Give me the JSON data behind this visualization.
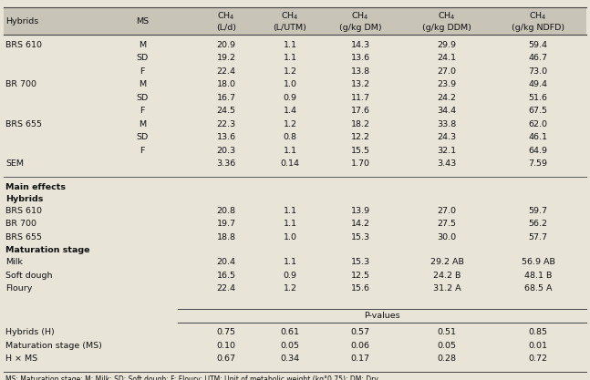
{
  "col_headers": [
    "Hybrids",
    "MS",
    "CH$_4$\n(L/d)",
    "CH$_4$\n(L/UTM)",
    "CH$_4$\n(g/kg DM)",
    "CH$_4$\n(g/kg DDM)",
    "CH$_4$\n(g/kg NDFD)"
  ],
  "rows": [
    [
      "BRS 610",
      "M",
      "20.9",
      "1.1",
      "14.3",
      "29.9",
      "59.4"
    ],
    [
      "",
      "SD",
      "19.2",
      "1.1",
      "13.6",
      "24.1",
      "46.7"
    ],
    [
      "",
      "F",
      "22.4",
      "1.2",
      "13.8",
      "27.0",
      "73.0"
    ],
    [
      "BR 700",
      "M",
      "18.0",
      "1.0",
      "13.2",
      "23.9",
      "49.4"
    ],
    [
      "",
      "SD",
      "16.7",
      "0.9",
      "11.7",
      "24.2",
      "51.6"
    ],
    [
      "",
      "F",
      "24.5",
      "1.4",
      "17.6",
      "34.4",
      "67.5"
    ],
    [
      "BRS 655",
      "M",
      "22.3",
      "1.2",
      "18.2",
      "33.8",
      "62.0"
    ],
    [
      "",
      "SD",
      "13.6",
      "0.8",
      "12.2",
      "24.3",
      "46.1"
    ],
    [
      "",
      "F",
      "20.3",
      "1.1",
      "15.5",
      "32.1",
      "64.9"
    ],
    [
      "SEM",
      "",
      "3.36",
      "0.14",
      "1.70",
      "3.43",
      "7.59"
    ]
  ],
  "main_effects_label": "Main effects",
  "hybrids_label": "Hybrids",
  "hybrid_rows": [
    [
      "BRS 610",
      "20.8",
      "1.1",
      "13.9",
      "27.0",
      "59.7"
    ],
    [
      "BR 700",
      "19.7",
      "1.1",
      "14.2",
      "27.5",
      "56.2"
    ],
    [
      "BRS 655",
      "18.8",
      "1.0",
      "15.3",
      "30.0",
      "57.7"
    ]
  ],
  "maturation_label": "Maturation stage",
  "maturation_rows": [
    [
      "Milk",
      "20.4",
      "1.1",
      "15.3",
      "29.2 AB",
      "56.9 AB"
    ],
    [
      "Soft dough",
      "16.5",
      "0.9",
      "12.5",
      "24.2 B",
      "48.1 B"
    ],
    [
      "Floury",
      "22.4",
      "1.2",
      "15.6",
      "31.2 A",
      "68.5 A"
    ]
  ],
  "pvalues_label": "P-values",
  "pvalue_rows": [
    [
      "Hybrids (H)",
      "0.75",
      "0.61",
      "0.57",
      "0.51",
      "0.85"
    ],
    [
      "Maturation stage (MS)",
      "0.10",
      "0.05",
      "0.06",
      "0.05",
      "0.01"
    ],
    [
      "H × MS",
      "0.67",
      "0.34",
      "0.17",
      "0.28",
      "0.72"
    ]
  ],
  "footnote": "MS: Maturation stage; M: Milk; SD: Soft dough; F: Floury; UTM: Unit of metabolic weight (kg°0.75); DM: Dry",
  "bg_color": "#e8e4d8",
  "text_color": "#111111",
  "line_color": "#444444",
  "header_bg": "#c8c4b8"
}
